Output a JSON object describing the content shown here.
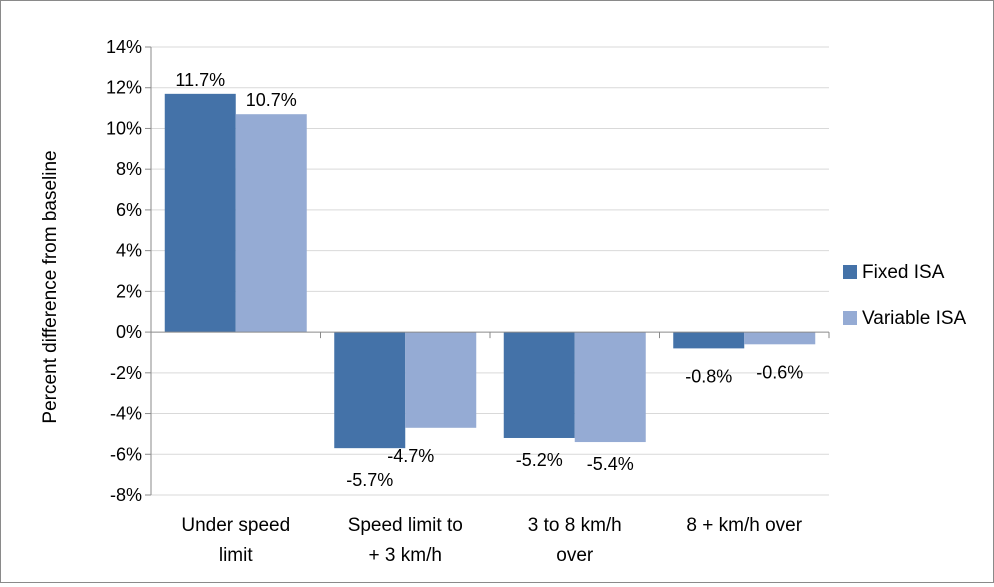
{
  "chart_data": {
    "type": "bar",
    "ylabel": "Percent difference from baseline",
    "categories": [
      [
        "Under speed",
        "limit"
      ],
      [
        "Speed limit to",
        "+ 3 km/h"
      ],
      [
        "3 to 8 km/h",
        "over"
      ],
      [
        "8 + km/h over"
      ]
    ],
    "series": [
      {
        "name": "Fixed ISA",
        "color": "#4472a8",
        "values": [
          11.7,
          -5.7,
          -5.2,
          -0.8
        ],
        "labels": [
          "11.7%",
          "-5.7%",
          "-5.2%",
          "-0.8%"
        ]
      },
      {
        "name": "Variable ISA",
        "color": "#95abd4",
        "values": [
          10.7,
          -4.7,
          -5.4,
          -0.6
        ],
        "labels": [
          "10.7%",
          "-4.7%",
          "-5.4%",
          "-0.6%"
        ]
      }
    ],
    "ylim": [
      -8,
      14
    ],
    "yticks": [
      14,
      12,
      10,
      8,
      6,
      4,
      2,
      0,
      -2,
      -4,
      -6,
      -8
    ],
    "ytick_labels": [
      "14%",
      "12%",
      "10%",
      "8%",
      "6%",
      "4%",
      "2%",
      "0%",
      "-2%",
      "-4%",
      "-6%",
      "-8%"
    ],
    "grid": true,
    "legend_position": "right"
  }
}
